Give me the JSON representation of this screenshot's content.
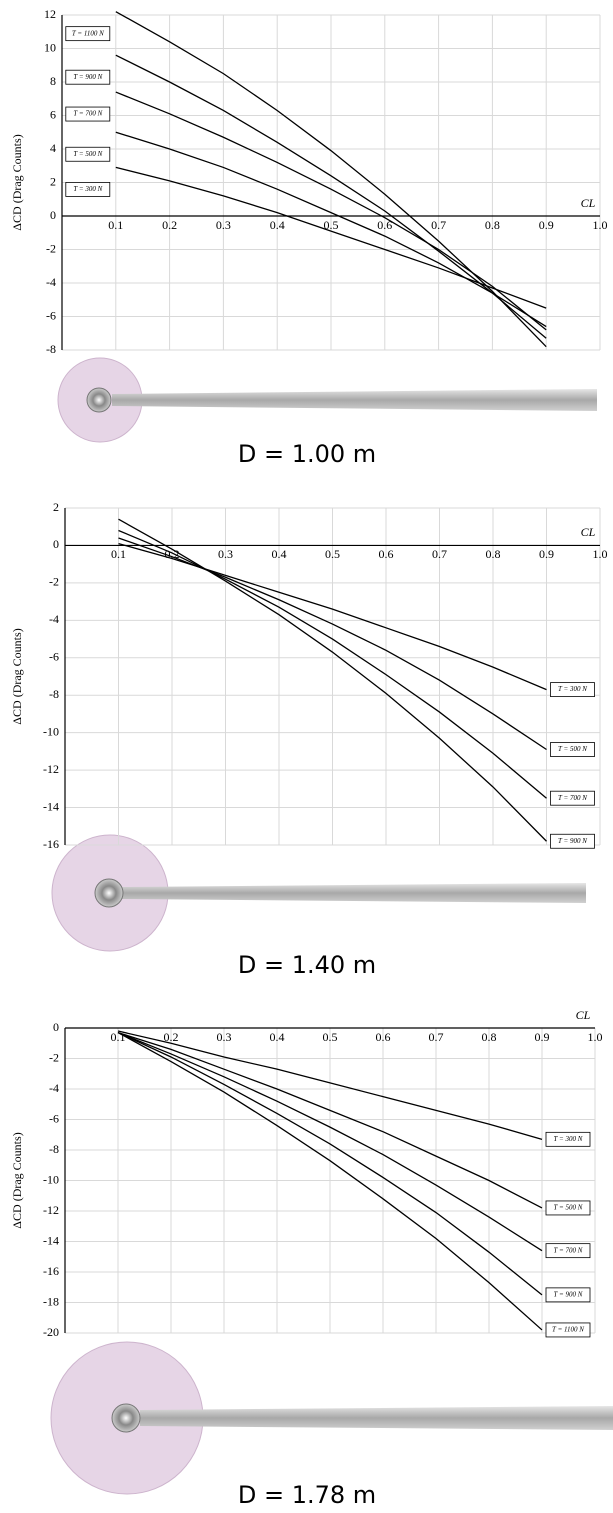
{
  "chart_data": [
    {
      "type": "line",
      "caption": "D = 1.00 m",
      "x_label": "CL",
      "y_label": "ΔCD (Drag Counts)",
      "x": [
        0.1,
        0.2,
        0.3,
        0.4,
        0.5,
        0.6,
        0.7,
        0.8,
        0.9
      ],
      "xlim": [
        0,
        1
      ],
      "xticks": [
        0.1,
        0.2,
        0.3,
        0.4,
        0.5,
        0.6,
        0.7,
        0.8,
        0.9,
        {
          "value": 1,
          "label": "1.0"
        }
      ],
      "ylim": [
        -8,
        12
      ],
      "yticks": [
        -8,
        -6,
        -4,
        -2,
        0,
        2,
        4,
        6,
        8,
        10,
        12
      ],
      "grid": true,
      "legend": "left",
      "series": [
        {
          "name": "T = 1100 N",
          "color": "#000000",
          "values": [
            12.2,
            10.4,
            8.5,
            6.3,
            3.9,
            1.3,
            -1.5,
            -4.5,
            -7.8
          ]
        },
        {
          "name": "T = 900 N",
          "color": "#000000",
          "values": [
            9.6,
            8.0,
            6.3,
            4.4,
            2.4,
            0.3,
            -2.1,
            -4.6,
            -7.3
          ]
        },
        {
          "name": "T = 700 N",
          "color": "#000000",
          "values": [
            7.4,
            6.1,
            4.7,
            3.2,
            1.6,
            -0.1,
            -2.0,
            -4.2,
            -6.8
          ]
        },
        {
          "name": "T = 500 N",
          "color": "#000000",
          "values": [
            5.0,
            4.0,
            2.9,
            1.6,
            0.2,
            -1.2,
            -2.8,
            -4.6,
            -6.6
          ]
        },
        {
          "name": "T = 300 N",
          "color": "#000000",
          "values": [
            2.9,
            2.1,
            1.2,
            0.2,
            -0.9,
            -2.0,
            -3.1,
            -4.3,
            -5.5
          ]
        }
      ]
    },
    {
      "type": "line",
      "caption": "D = 1.40 m",
      "x_label": "CL",
      "y_label": "ΔCD (Drag Counts)",
      "x": [
        0.1,
        0.2,
        0.3,
        0.4,
        0.5,
        0.6,
        0.7,
        0.8,
        0.9
      ],
      "xlim": [
        0,
        1
      ],
      "xticks": [
        0.1,
        0.2,
        0.3,
        0.4,
        0.5,
        0.6,
        0.7,
        0.8,
        0.9,
        {
          "value": 1,
          "label": "1.0"
        }
      ],
      "ylim": [
        -16,
        2
      ],
      "yticks": [
        -16,
        -14,
        -12,
        -10,
        -8,
        -6,
        -4,
        -2,
        0,
        2
      ],
      "grid": true,
      "legend": "right",
      "series": [
        {
          "name": "T = 300 N",
          "color": "#000000",
          "values": [
            0.1,
            -0.7,
            -1.6,
            -2.5,
            -3.4,
            -4.4,
            -5.4,
            -6.5,
            -7.7
          ]
        },
        {
          "name": "T = 500 N",
          "color": "#000000",
          "values": [
            0.4,
            -0.6,
            -1.7,
            -2.9,
            -4.2,
            -5.6,
            -7.2,
            -9.0,
            -10.9
          ]
        },
        {
          "name": "T = 700 N",
          "color": "#000000",
          "values": [
            0.8,
            -0.4,
            -1.8,
            -3.3,
            -5.0,
            -6.9,
            -8.9,
            -11.1,
            -13.5
          ]
        },
        {
          "name": "T = 900 N",
          "color": "#000000",
          "values": [
            1.4,
            -0.2,
            -1.9,
            -3.7,
            -5.7,
            -7.9,
            -10.3,
            -12.9,
            -15.8
          ]
        }
      ]
    },
    {
      "type": "line",
      "caption": "D = 1.78 m",
      "x_label": "CL",
      "y_label": "ΔCD (Drag Counts)",
      "x": [
        0.1,
        0.2,
        0.3,
        0.4,
        0.5,
        0.6,
        0.7,
        0.8,
        0.9
      ],
      "xlim": [
        0,
        1
      ],
      "xticks": [
        0.1,
        0.2,
        0.3,
        0.4,
        0.5,
        0.6,
        0.7,
        0.8,
        0.9,
        {
          "value": 1,
          "label": "1.0"
        }
      ],
      "ylim": [
        -20,
        0
      ],
      "yticks": [
        -20,
        -18,
        -16,
        -14,
        -12,
        -10,
        -8,
        -6,
        -4,
        -2,
        0
      ],
      "grid": true,
      "legend": "right",
      "series": [
        {
          "name": "T = 300 N",
          "color": "#000000",
          "values": [
            -0.2,
            -1.0,
            -1.9,
            -2.7,
            -3.6,
            -4.5,
            -5.4,
            -6.3,
            -7.3
          ]
        },
        {
          "name": "T = 500 N",
          "color": "#000000",
          "values": [
            -0.3,
            -1.4,
            -2.7,
            -4.0,
            -5.4,
            -6.8,
            -8.4,
            -10.0,
            -11.8
          ]
        },
        {
          "name": "T = 700 N",
          "color": "#000000",
          "values": [
            -0.3,
            -1.7,
            -3.2,
            -4.8,
            -6.5,
            -8.3,
            -10.3,
            -12.4,
            -14.6
          ]
        },
        {
          "name": "T = 900 N",
          "color": "#000000",
          "values": [
            -0.3,
            -1.9,
            -3.7,
            -5.6,
            -7.6,
            -9.8,
            -12.1,
            -14.7,
            -17.5
          ]
        },
        {
          "name": "T = 1100 N",
          "color": "#000000",
          "values": [
            -0.3,
            -2.2,
            -4.2,
            -6.4,
            -8.7,
            -11.2,
            -13.8,
            -16.7,
            -19.8
          ]
        }
      ]
    }
  ]
}
